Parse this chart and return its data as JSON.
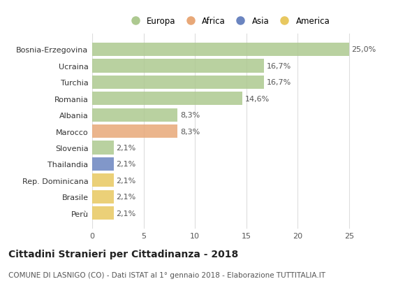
{
  "countries": [
    "Bosnia-Erzegovina",
    "Ucraina",
    "Turchia",
    "Romania",
    "Albania",
    "Marocco",
    "Slovenia",
    "Thailandia",
    "Rep. Dominicana",
    "Brasile",
    "Perù"
  ],
  "values": [
    25.0,
    16.7,
    16.7,
    14.6,
    8.3,
    8.3,
    2.1,
    2.1,
    2.1,
    2.1,
    2.1
  ],
  "labels": [
    "25,0%",
    "16,7%",
    "16,7%",
    "14,6%",
    "8,3%",
    "8,3%",
    "2,1%",
    "2,1%",
    "2,1%",
    "2,1%",
    "2,1%"
  ],
  "continents": [
    "Europa",
    "Europa",
    "Europa",
    "Europa",
    "Europa",
    "Africa",
    "Europa",
    "Asia",
    "America",
    "America",
    "America"
  ],
  "colors": {
    "Europa": "#adc990",
    "Africa": "#e8a878",
    "Asia": "#6b85c0",
    "America": "#e8c860"
  },
  "legend_order": [
    "Europa",
    "Africa",
    "Asia",
    "America"
  ],
  "xlim": [
    0,
    26.5
  ],
  "xticks": [
    0,
    5,
    10,
    15,
    20,
    25
  ],
  "title": "Cittadini Stranieri per Cittadinanza - 2018",
  "subtitle": "COMUNE DI LASNIGO (CO) - Dati ISTAT al 1° gennaio 2018 - Elaborazione TUTTITALIA.IT",
  "title_fontsize": 10,
  "subtitle_fontsize": 7.5,
  "bg_color": "#ffffff",
  "grid_color": "#dddddd",
  "bar_height": 0.82,
  "label_fontsize": 8,
  "ytick_fontsize": 8,
  "xtick_fontsize": 8
}
